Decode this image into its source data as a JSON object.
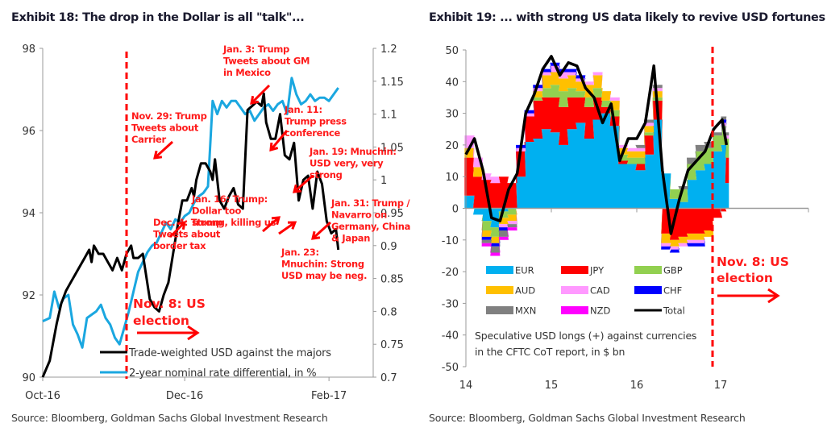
{
  "exhibits": {
    "left": {
      "title": "Exhibit 18: The drop in the Dollar is all \"talk\"...",
      "source": "Source: Bloomberg, Goldman Sachs Global Investment Research"
    },
    "right": {
      "title": "Exhibit 19: ... with strong US data likely to revive USD fortunes",
      "source": "Source: Bloomberg, Goldman Sachs Global Investment Research"
    }
  },
  "colors": {
    "usd": "#000000",
    "rate": "#1aa7e0",
    "annotation": "#ff1a1a",
    "axis": "#9a9a9a"
  },
  "chart_data": [
    {
      "type": "line",
      "title": "Exhibit 18: The drop in the Dollar is all \"talk\"...",
      "x_ticks": [
        "Oct-16",
        "Dec-16",
        "Feb-17"
      ],
      "x_range": [
        "2016-10-01",
        "2017-02-20"
      ],
      "y_left": {
        "ticks": [
          "90",
          "92",
          "94",
          "96",
          "98"
        ],
        "range": [
          90,
          98
        ]
      },
      "y_right": {
        "ticks": [
          "0.7",
          "0.75",
          "0.8",
          "0.85",
          "0.9",
          "0.95",
          "1",
          "1.05",
          "1.1",
          "1.15",
          "1.2"
        ],
        "range": [
          0.7,
          1.2
        ]
      },
      "grid": false,
      "legend": {
        "placement": "bottom-center"
      },
      "series": [
        {
          "name": "Trade-weighted USD against the majors",
          "axis": "left",
          "color": "#000000",
          "days": [
            0,
            3,
            6,
            8,
            10,
            12,
            14,
            16,
            18,
            20,
            21,
            22,
            24,
            26,
            28,
            30,
            32,
            34,
            36,
            38,
            39,
            41,
            43,
            46,
            48,
            50,
            52,
            54,
            56,
            58,
            60,
            62,
            64,
            65,
            66,
            68,
            70,
            72,
            73,
            74,
            76,
            78,
            80,
            82,
            84,
            86,
            88,
            90,
            92,
            94,
            95,
            96,
            98,
            100,
            102,
            104,
            106,
            108,
            110,
            112,
            114,
            116,
            118,
            120,
            122,
            124,
            126,
            127
          ],
          "values": [
            90.0,
            90.4,
            91.3,
            91.8,
            92.1,
            92.3,
            92.5,
            92.7,
            92.9,
            93.1,
            92.8,
            93.2,
            93.0,
            93.0,
            92.8,
            92.6,
            92.9,
            92.6,
            93.0,
            93.2,
            92.9,
            92.9,
            93.0,
            91.9,
            91.7,
            91.6,
            92.0,
            92.3,
            93.0,
            93.7,
            94.3,
            94.3,
            94.6,
            94.4,
            94.8,
            95.2,
            95.2,
            95.0,
            94.8,
            95.3,
            94.3,
            94.1,
            94.4,
            94.6,
            94.2,
            94.1,
            96.5,
            96.6,
            96.7,
            96.6,
            96.9,
            96.2,
            95.8,
            95.8,
            96.4,
            95.4,
            95.3,
            95.7,
            94.3,
            94.8,
            94.9,
            94.1,
            95.0,
            94.7,
            93.8,
            93.5,
            93.6,
            93.1
          ],
          "marked_events": [
            "Nov. 8: US election"
          ]
        },
        {
          "name": "2-year nominal rate differential, in %",
          "axis": "right",
          "color": "#1aa7e0",
          "days": [
            0,
            3,
            5,
            7,
            9,
            11,
            13,
            15,
            17,
            19,
            21,
            23,
            25,
            27,
            29,
            31,
            33,
            35,
            37,
            39,
            41,
            43,
            45,
            47,
            49,
            51,
            53,
            55,
            57,
            59,
            61,
            63,
            65,
            67,
            69,
            71,
            73,
            75,
            77,
            79,
            81,
            83,
            85,
            87,
            89,
            91,
            93,
            95,
            97,
            99,
            101,
            103,
            105,
            107,
            109,
            111,
            113,
            115,
            117,
            119,
            121,
            123,
            125,
            127
          ],
          "values": [
            0.785,
            0.79,
            0.83,
            0.805,
            0.82,
            0.825,
            0.78,
            0.765,
            0.745,
            0.79,
            0.795,
            0.8,
            0.81,
            0.79,
            0.78,
            0.76,
            0.75,
            0.775,
            0.8,
            0.83,
            0.86,
            0.875,
            0.89,
            0.9,
            0.905,
            0.92,
            0.935,
            0.925,
            0.94,
            0.935,
            0.945,
            0.95,
            0.965,
            0.975,
            0.98,
            0.99,
            1.12,
            1.1,
            1.12,
            1.11,
            1.12,
            1.12,
            1.11,
            1.1,
            1.105,
            1.09,
            1.1,
            1.11,
            1.115,
            1.105,
            1.115,
            1.12,
            1.1,
            1.155,
            1.13,
            1.115,
            1.12,
            1.13,
            1.12,
            1.125,
            1.125,
            1.12,
            1.13,
            1.14
          ]
        }
      ],
      "annotations": [
        {
          "id": "nov29",
          "lines": [
            "Nov. 29: Trump",
            "Tweets about",
            "Carrier"
          ]
        },
        {
          "id": "jan3",
          "lines": [
            "Jan. 3: Trump",
            "Tweets about GM",
            "in Mexico"
          ]
        },
        {
          "id": "jan11",
          "lines": [
            "Jan. 11:",
            "Trump press",
            "conference"
          ]
        },
        {
          "id": "jan19",
          "lines": [
            "Jan. 19: Mnuchin:",
            "USD very, very",
            "strong"
          ]
        },
        {
          "id": "jan16",
          "lines": [
            "Jan. 16: Trump:",
            "Dollar too",
            "strong, killing us"
          ]
        },
        {
          "id": "jan31",
          "lines": [
            "Jan. 31: Trump /",
            "Navarro on",
            "Germany, China",
            "& Japan"
          ]
        },
        {
          "id": "dec4",
          "lines": [
            "Dec. 4: Trump",
            "Tweets about",
            "border tax"
          ]
        },
        {
          "id": "jan23",
          "lines": [
            "Jan. 23:",
            "Mnuchin: Strong",
            "USD may be neg."
          ]
        },
        {
          "id": "election",
          "lines": [
            "Nov. 8: US",
            "election"
          ]
        }
      ]
    },
    {
      "type": "area",
      "stacked": true,
      "title": "Exhibit 19: ... with strong US data likely to revive USD fortunes",
      "x_ticks": [
        "14",
        "15",
        "16",
        "17"
      ],
      "x_range": [
        14.0,
        17.35
      ],
      "y": {
        "ticks": [
          "50",
          "40",
          "30",
          "20",
          "10",
          "0",
          "-10",
          "-20",
          "-30",
          "-40",
          "-50"
        ],
        "range": [
          -50,
          50
        ]
      },
      "grid": false,
      "legend": {
        "placement": "bottom-left",
        "columns": 3
      },
      "note": [
        "Speculative USD longs (+) against currencies",
        "in the CFTC CoT report, in $ bn"
      ],
      "annotation": {
        "lines": [
          "Nov. 8: US",
          "election"
        ]
      },
      "x": [
        14.0,
        14.1,
        14.2,
        14.3,
        14.4,
        14.5,
        14.6,
        14.7,
        14.8,
        14.9,
        15.0,
        15.1,
        15.2,
        15.3,
        15.4,
        15.5,
        15.6,
        15.7,
        15.8,
        15.9,
        16.0,
        16.1,
        16.2,
        16.3,
        16.4,
        16.5,
        16.6,
        16.7,
        16.8,
        16.9,
        17.0,
        17.05
      ],
      "series": [
        {
          "name": "EUR",
          "color": "#00b0f0",
          "values": [
            4,
            -2,
            -4,
            -6,
            -1,
            0,
            10,
            21,
            22,
            25,
            24,
            20,
            25,
            27,
            22,
            28,
            30,
            26,
            14,
            14,
            12,
            17,
            28,
            11,
            3,
            2,
            9,
            12,
            14,
            18,
            20,
            8
          ]
        },
        {
          "name": "JPY",
          "color": "#ff0000",
          "values": [
            12,
            10,
            9,
            8,
            10,
            8,
            8,
            8,
            12,
            10,
            11,
            12,
            10,
            8,
            10,
            7,
            2,
            3,
            1,
            0,
            2,
            6,
            6,
            -8,
            -10,
            -9,
            -8,
            -8,
            -7,
            -3,
            -1,
            8
          ]
        },
        {
          "name": "GBP",
          "color": "#92d050",
          "values": [
            0,
            0,
            -3,
            -3,
            -2,
            -2,
            0,
            0,
            1,
            3,
            4,
            5,
            3,
            2,
            3,
            3,
            2,
            2,
            2,
            2,
            2,
            1,
            1,
            0,
            3,
            4,
            5,
            6,
            5,
            5,
            6,
            6
          ]
        },
        {
          "name": "AUD",
          "color": "#ffc000",
          "values": [
            3,
            3,
            -2,
            -2,
            -2,
            -2,
            0,
            0,
            2,
            4,
            4,
            4,
            4,
            3,
            4,
            4,
            3,
            3,
            2,
            2,
            2,
            2,
            2,
            -3,
            -2,
            -2,
            -2,
            -2,
            -2,
            0,
            0,
            0
          ]
        },
        {
          "name": "CAD",
          "color": "#ff99ff",
          "values": [
            4,
            3,
            2,
            2,
            -1,
            -1,
            1,
            1,
            1,
            1,
            2,
            2,
            1,
            1,
            1,
            1,
            0,
            1,
            1,
            1,
            1,
            1,
            1,
            -1,
            -1,
            -1,
            -1,
            -1,
            0,
            0,
            1,
            1
          ]
        },
        {
          "name": "CHF",
          "color": "#0000ff",
          "values": [
            0,
            0,
            -1,
            -1,
            -1,
            0,
            1,
            1,
            1,
            1,
            1,
            1,
            1,
            1,
            0,
            0,
            0,
            0,
            0,
            0,
            0,
            0,
            0,
            -1,
            -1,
            0,
            -1,
            -1,
            0,
            0,
            1,
            0
          ]
        },
        {
          "name": "MXN",
          "color": "#808080",
          "values": [
            0,
            0,
            -1,
            -2,
            -2,
            -1,
            0,
            0,
            0,
            0,
            0,
            0,
            0,
            0,
            0,
            0,
            0,
            0,
            0,
            0,
            1,
            1,
            1,
            0,
            0,
            1,
            2,
            2,
            2,
            1,
            1,
            1
          ]
        },
        {
          "name": "NZD",
          "color": "#ff00ff",
          "values": [
            0,
            0,
            -1,
            -1,
            -1,
            -1,
            0,
            0,
            0,
            0,
            0,
            0,
            0,
            0,
            0,
            0,
            0,
            0,
            0,
            0,
            0,
            0,
            0,
            0,
            0,
            0,
            0,
            0,
            0,
            0,
            0,
            0
          ]
        },
        {
          "name": "Total",
          "color": "#000000",
          "type": "line",
          "values": [
            17,
            22,
            12,
            -3,
            -4,
            6,
            11,
            30,
            36,
            44,
            48,
            42,
            46,
            45,
            38,
            35,
            27,
            33,
            15,
            22,
            22,
            27,
            45,
            12,
            -8,
            3,
            12,
            15,
            18,
            25,
            28,
            20
          ]
        }
      ]
    }
  ]
}
